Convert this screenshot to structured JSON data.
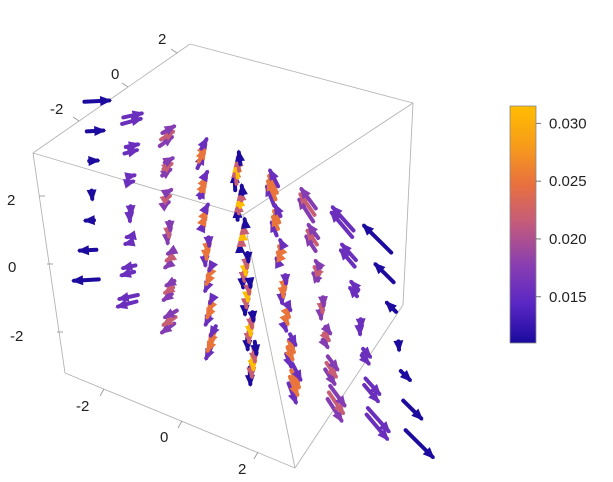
{
  "chart_data": {
    "type": "vector-field-3d",
    "description_of_field": "hyperboloid-like streamline arrows, converging at center",
    "x_ticks": [
      "-2",
      "0",
      "2"
    ],
    "y_ticks": [
      "-2",
      "0",
      "2"
    ],
    "z_ticks": [
      "-2",
      "0",
      "2"
    ],
    "xlim": [
      -3,
      3
    ],
    "ylim": [
      -3,
      3
    ],
    "zlim": [
      -3,
      3
    ],
    "colorbar": {
      "min": 0.011,
      "max": 0.0315,
      "ticks": [
        "0.015",
        "0.020",
        "0.025",
        "0.030"
      ],
      "tick_values": [
        0.015,
        0.02,
        0.025,
        0.03
      ],
      "gradient": [
        "#1a0a9e",
        "#5a27c4",
        "#8a3fb0",
        "#c25a7e",
        "#e8703f",
        "#f79c1a",
        "#ffbd00"
      ]
    },
    "magnitude_colors": {
      "low": "#1f0c9c",
      "mid_low": "#5b2fc0",
      "mid": "#9a4a9f",
      "mid_high": "#e26756",
      "high": "#ffb600"
    }
  }
}
